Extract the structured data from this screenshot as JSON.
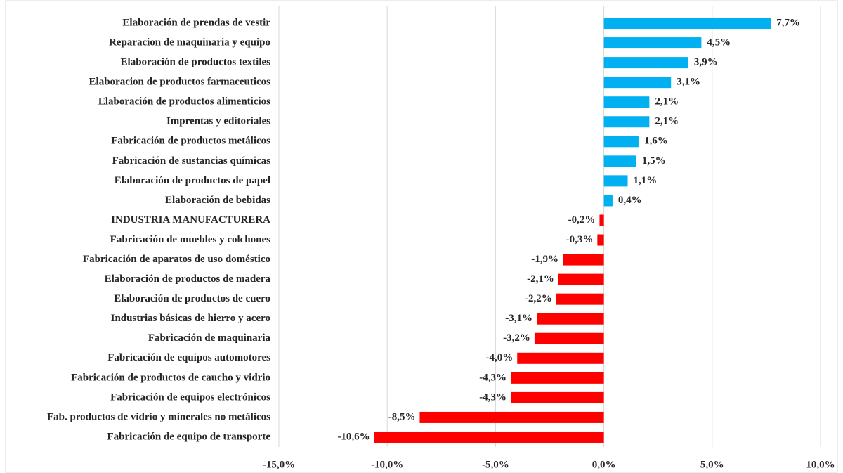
{
  "chart_data": {
    "type": "bar",
    "orientation": "horizontal",
    "categories": [
      "Elaboración de prendas de vestir",
      "Reparacion de maquinaria y equipo",
      "Elaboración de productos textiles",
      "Elaboracion de productos farmaceuticos",
      "Elaboración de productos alimenticios",
      "Imprentas y editoriales",
      "Fabricación de productos metálicos",
      "Fabricación de sustancias químicas",
      "Elaboración de productos de papel",
      "Elaboración de bebidas",
      "INDUSTRIA MANUFACTURERA",
      "Fabricación de muebles y colchones",
      "Fabricación de aparatos de uso doméstico",
      "Elaboración de productos de madera",
      "Elaboración de productos de cuero",
      "Industrias básicas de hierro y acero",
      "Fabricación de maquinaria",
      "Fabricación de equipos automotores",
      "Fabricación de productos de caucho y vidrio",
      "Fabricación de equipos electrónicos",
      "Fab. productos de vidrio y minerales no metálicos",
      "Fabricación de equipo de transporte"
    ],
    "values": [
      7.7,
      4.5,
      3.9,
      3.1,
      2.1,
      2.1,
      1.6,
      1.5,
      1.1,
      0.4,
      -0.2,
      -0.3,
      -1.9,
      -2.1,
      -2.2,
      -3.1,
      -3.2,
      -4.0,
      -4.3,
      -4.3,
      -8.5,
      -10.6
    ],
    "value_labels": [
      "7,7%",
      "4,5%",
      "3,9%",
      "3,1%",
      "2,1%",
      "2,1%",
      "1,6%",
      "1,5%",
      "1,1%",
      "0,4%",
      "-0,2%",
      "-0,3%",
      "-1,9%",
      "-2,1%",
      "-2,2%",
      "-3,1%",
      "-3,2%",
      "-4,0%",
      "-4,3%",
      "-4,3%",
      "-8,5%",
      "-10,6%"
    ],
    "color": "#00b0f0",
    "negative_color": "#ff0000",
    "xlim": [
      -15,
      10
    ],
    "xticks": [
      {
        "value": -15,
        "label": "-15,0%"
      },
      {
        "value": -10,
        "label": "-10,0%"
      },
      {
        "value": -5,
        "label": "-5,0%"
      },
      {
        "value": 0,
        "label": "0,0%"
      },
      {
        "value": 5,
        "label": "5,0%"
      },
      {
        "value": 10,
        "label": "10,0%"
      }
    ],
    "grid": true
  }
}
